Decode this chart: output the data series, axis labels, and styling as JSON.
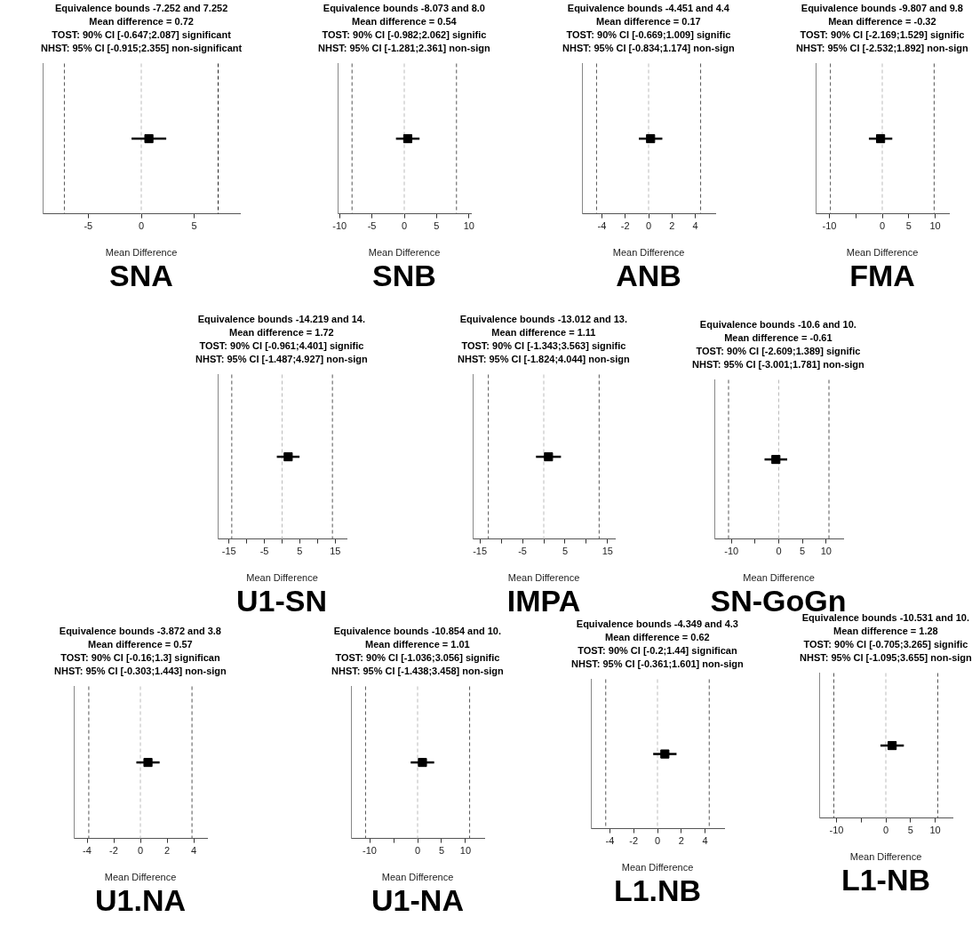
{
  "chart_data": [
    {
      "type": "scatter",
      "orientation": "horizontal",
      "marker": "square",
      "title": "SNA",
      "xlabel": "Mean Difference",
      "annotations": [
        "Equivalence bounds -7.252 and 7.252",
        "Mean difference = 0.72",
        "TOST: 90% CI [-0.647;2.087] significant",
        "NHST: 95% CI [-0.915;2.355] non-significant"
      ],
      "categories": [
        null
      ],
      "series": [
        {
          "color": "#000000",
          "values": [
            0.72
          ],
          "errors": [
            [
              -0.915,
              2.355
            ]
          ]
        }
      ],
      "xlim": [
        -9.3,
        9.3
      ],
      "xticks": [
        -5,
        0,
        5
      ],
      "ref_lines": [
        {
          "axis": "x",
          "value": -7.252,
          "color": "#555555",
          "line_style": "dashed"
        },
        {
          "axis": "x",
          "value": 7.252,
          "color": "#222222",
          "line_style": "dashed"
        },
        {
          "axis": "x",
          "value": 0,
          "color": "#bbbbbb",
          "line_style": "dashed"
        }
      ],
      "tick_labels": "x"
    },
    {
      "type": "scatter",
      "orientation": "horizontal",
      "marker": "square",
      "title": "SNB",
      "xlabel": "Mean Difference",
      "annotations": [
        "Equivalence bounds -8.073 and 8.0",
        "Mean difference = 0.54",
        "TOST: 90% CI [-0.982;2.062] signific",
        "NHST: 95% CI [-1.281;2.361] non-sign"
      ],
      "categories": [
        null
      ],
      "series": [
        {
          "color": "#000000",
          "values": [
            0.54
          ],
          "errors": [
            [
              -1.281,
              2.361
            ]
          ]
        }
      ],
      "xlim": [
        -10.3,
        10.3
      ],
      "xticks": [
        -10,
        -5,
        0,
        5,
        10
      ],
      "ref_lines": [
        {
          "axis": "x",
          "value": -8.073,
          "color": "#555555",
          "line_style": "dashed"
        },
        {
          "axis": "x",
          "value": 8.073,
          "color": "#555555",
          "line_style": "dashed"
        },
        {
          "axis": "x",
          "value": 0,
          "color": "#bbbbbb",
          "line_style": "dashed"
        }
      ],
      "tick_labels": "x"
    },
    {
      "type": "scatter",
      "orientation": "horizontal",
      "marker": "square",
      "title": "ANB",
      "xlabel": "Mean Difference",
      "annotations": [
        "Equivalence bounds -4.451 and 4.4",
        "Mean difference = 0.17",
        "TOST: 90% CI [-0.669;1.009] signific",
        "NHST: 95% CI [-0.834;1.174] non-sign"
      ],
      "categories": [
        null
      ],
      "series": [
        {
          "color": "#000000",
          "values": [
            0.17
          ],
          "errors": [
            [
              -0.834,
              1.174
            ]
          ]
        }
      ],
      "xlim": [
        -5.7,
        5.7
      ],
      "xticks": [
        -4,
        -2,
        0,
        2,
        4
      ],
      "ref_lines": [
        {
          "axis": "x",
          "value": -4.451,
          "color": "#555555",
          "line_style": "dashed"
        },
        {
          "axis": "x",
          "value": 4.451,
          "color": "#555555",
          "line_style": "dashed"
        },
        {
          "axis": "x",
          "value": 0,
          "color": "#bbbbbb",
          "line_style": "dashed"
        }
      ],
      "tick_labels": "x"
    },
    {
      "type": "scatter",
      "orientation": "horizontal",
      "marker": "square",
      "title": "FMA",
      "xlabel": "Mean Difference",
      "annotations": [
        "Equivalence bounds -9.807 and 9.8",
        "Mean difference = -0.32",
        "TOST: 90% CI [-2.169;1.529] signific",
        "NHST: 95% CI [-2.532;1.892] non-sign"
      ],
      "categories": [
        null
      ],
      "series": [
        {
          "color": "#000000",
          "values": [
            -0.32
          ],
          "errors": [
            [
              -2.532,
              1.892
            ]
          ]
        }
      ],
      "xlim": [
        -12.6,
        12.6
      ],
      "xticks": [
        -10,
        {
          "value": -5,
          "label": null
        },
        0,
        5,
        10
      ],
      "ref_lines": [
        {
          "axis": "x",
          "value": -9.807,
          "color": "#555555",
          "line_style": "dashed"
        },
        {
          "axis": "x",
          "value": 9.807,
          "color": "#555555",
          "line_style": "dashed"
        },
        {
          "axis": "x",
          "value": 0,
          "color": "#bbbbbb",
          "line_style": "dashed"
        }
      ],
      "tick_labels": "x"
    },
    {
      "type": "scatter",
      "orientation": "horizontal",
      "marker": "square",
      "title": "U1-SN",
      "xlabel": "Mean Difference",
      "annotations": [
        "Equivalence bounds -14.219 and 14.",
        "Mean difference = 1.72",
        "TOST: 90% CI [-0.961;4.401] signific",
        "NHST: 95% CI [-1.487;4.927] non-sign"
      ],
      "categories": [
        null
      ],
      "series": [
        {
          "color": "#000000",
          "values": [
            1.72
          ],
          "errors": [
            [
              -1.487,
              4.927
            ]
          ]
        }
      ],
      "xlim": [
        -18.2,
        18.2
      ],
      "xticks": [
        -15,
        {
          "value": -10,
          "label": null
        },
        -5,
        {
          "value": 0,
          "label": null
        },
        5,
        {
          "value": 10,
          "label": null
        },
        15
      ],
      "ref_lines": [
        {
          "axis": "x",
          "value": -14.219,
          "color": "#555555",
          "line_style": "dashed"
        },
        {
          "axis": "x",
          "value": 14.219,
          "color": "#555555",
          "line_style": "dashed"
        },
        {
          "axis": "x",
          "value": 0,
          "color": "#bbbbbb",
          "line_style": "dashed"
        }
      ],
      "tick_labels": "x"
    },
    {
      "type": "scatter",
      "orientation": "horizontal",
      "marker": "square",
      "title": "IMPA",
      "xlabel": "Mean Difference",
      "annotations": [
        "Equivalence bounds -13.012 and 13.",
        "Mean difference = 1.11",
        "TOST: 90% CI [-1.343;3.563] signific",
        "NHST: 95% CI [-1.824;4.044] non-sign"
      ],
      "categories": [
        null
      ],
      "series": [
        {
          "color": "#000000",
          "values": [
            1.11
          ],
          "errors": [
            [
              -1.824,
              4.044
            ]
          ]
        }
      ],
      "xlim": [
        -16.7,
        16.7
      ],
      "xticks": [
        -15,
        {
          "value": -10,
          "label": null
        },
        -5,
        {
          "value": 0,
          "label": null
        },
        5,
        {
          "value": 10,
          "label": null
        },
        15
      ],
      "ref_lines": [
        {
          "axis": "x",
          "value": -13.012,
          "color": "#555555",
          "line_style": "dashed"
        },
        {
          "axis": "x",
          "value": 13.012,
          "color": "#555555",
          "line_style": "dashed"
        },
        {
          "axis": "x",
          "value": 0,
          "color": "#bbbbbb",
          "line_style": "dashed"
        }
      ],
      "tick_labels": "x"
    },
    {
      "type": "scatter",
      "orientation": "horizontal",
      "marker": "square",
      "title": "SN-GoGn",
      "xlabel": "Mean Difference",
      "annotations": [
        "Equivalence bounds -10.6 and 10.",
        "Mean difference = -0.61",
        "TOST: 90% CI [-2.609;1.389] signific",
        "NHST: 95% CI [-3.001;1.781] non-sign"
      ],
      "categories": [
        null
      ],
      "series": [
        {
          "color": "#000000",
          "values": [
            -0.61
          ],
          "errors": [
            [
              -3.001,
              1.781
            ]
          ]
        }
      ],
      "xlim": [
        -13.6,
        13.6
      ],
      "xticks": [
        -10,
        {
          "value": -5,
          "label": null
        },
        0,
        5,
        10
      ],
      "ref_lines": [
        {
          "axis": "x",
          "value": -10.6,
          "color": "#555555",
          "line_style": "dashed"
        },
        {
          "axis": "x",
          "value": 10.6,
          "color": "#555555",
          "line_style": "dashed"
        },
        {
          "axis": "x",
          "value": 0,
          "color": "#bbbbbb",
          "line_style": "dashed"
        }
      ],
      "tick_labels": "x"
    },
    {
      "type": "scatter",
      "orientation": "horizontal",
      "marker": "square",
      "title": "U1.NA",
      "xlabel": "Mean Difference",
      "annotations": [
        "Equivalence bounds -3.872 and 3.8",
        "Mean difference = 0.57",
        "TOST: 90% CI [-0.16;1.3] significan",
        "NHST: 95% CI [-0.303;1.443] non-sign"
      ],
      "categories": [
        null
      ],
      "series": [
        {
          "color": "#000000",
          "values": [
            0.57
          ],
          "errors": [
            [
              -0.303,
              1.443
            ]
          ]
        }
      ],
      "xlim": [
        -5,
        5
      ],
      "xticks": [
        -4,
        -2,
        0,
        2,
        4
      ],
      "ref_lines": [
        {
          "axis": "x",
          "value": -3.872,
          "color": "#555555",
          "line_style": "dashed"
        },
        {
          "axis": "x",
          "value": 3.872,
          "color": "#555555",
          "line_style": "dashed"
        },
        {
          "axis": "x",
          "value": 0,
          "color": "#bbbbbb",
          "line_style": "dashed"
        }
      ],
      "tick_labels": "x"
    },
    {
      "type": "scatter",
      "orientation": "horizontal",
      "marker": "square",
      "title": "U1-NA",
      "xlabel": "Mean Difference",
      "annotations": [
        "Equivalence bounds -10.854 and 10.",
        "Mean difference = 1.01",
        "TOST: 90% CI [-1.036;3.056] signific",
        "NHST: 95% CI [-1.438;3.458] non-sign"
      ],
      "categories": [
        null
      ],
      "series": [
        {
          "color": "#000000",
          "values": [
            1.01
          ],
          "errors": [
            [
              -1.438,
              3.458
            ]
          ]
        }
      ],
      "xlim": [
        -13.9,
        13.9
      ],
      "xticks": [
        -10,
        {
          "value": -5,
          "label": null
        },
        0,
        5,
        10
      ],
      "ref_lines": [
        {
          "axis": "x",
          "value": -10.854,
          "color": "#555555",
          "line_style": "dashed"
        },
        {
          "axis": "x",
          "value": 10.854,
          "color": "#555555",
          "line_style": "dashed"
        },
        {
          "axis": "x",
          "value": 0,
          "color": "#bbbbbb",
          "line_style": "dashed"
        }
      ],
      "tick_labels": "x"
    },
    {
      "type": "scatter",
      "orientation": "horizontal",
      "marker": "square",
      "title": "L1.NB",
      "xlabel": "Mean Difference",
      "annotations": [
        "Equivalence bounds -4.349 and 4.3",
        "Mean difference = 0.62",
        "TOST: 90% CI [-0.2;1.44] significan",
        "NHST: 95% CI [-0.361;1.601] non-sign"
      ],
      "categories": [
        null
      ],
      "series": [
        {
          "color": "#000000",
          "values": [
            0.62
          ],
          "errors": [
            [
              -0.361,
              1.601
            ]
          ]
        }
      ],
      "xlim": [
        -5.6,
        5.6
      ],
      "xticks": [
        -4,
        -2,
        0,
        2,
        4
      ],
      "ref_lines": [
        {
          "axis": "x",
          "value": -4.349,
          "color": "#555555",
          "line_style": "dashed"
        },
        {
          "axis": "x",
          "value": 4.349,
          "color": "#555555",
          "line_style": "dashed"
        },
        {
          "axis": "x",
          "value": 0,
          "color": "#bbbbbb",
          "line_style": "dashed"
        }
      ],
      "tick_labels": "x"
    },
    {
      "type": "scatter",
      "orientation": "horizontal",
      "marker": "square",
      "title": "L1-NB",
      "xlabel": "Mean Difference",
      "annotations": [
        "Equivalence bounds -10.531 and 10.",
        "Mean difference = 1.28",
        "TOST: 90% CI [-0.705;3.265] signific",
        "NHST: 95% CI [-1.095;3.655] non-sign"
      ],
      "categories": [
        null
      ],
      "series": [
        {
          "color": "#000000",
          "values": [
            1.28
          ],
          "errors": [
            [
              -1.095,
              3.655
            ]
          ]
        }
      ],
      "xlim": [
        -13.5,
        13.5
      ],
      "xticks": [
        -10,
        {
          "value": -5,
          "label": null
        },
        0,
        5,
        10
      ],
      "ref_lines": [
        {
          "axis": "x",
          "value": -10.531,
          "color": "#555555",
          "line_style": "dashed"
        },
        {
          "axis": "x",
          "value": 10.531,
          "color": "#555555",
          "line_style": "dashed"
        },
        {
          "axis": "x",
          "value": 0,
          "color": "#bbbbbb",
          "line_style": "dashed"
        }
      ],
      "tick_labels": "x"
    }
  ]
}
